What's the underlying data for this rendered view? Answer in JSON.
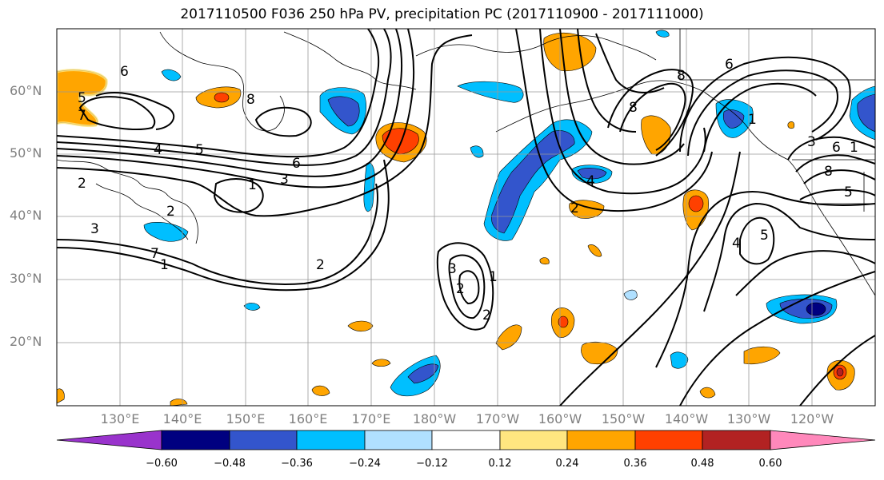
{
  "title": "2017110500 F036 250 hPa PV, precipitation PC (2017110900 - 2017111000)",
  "latitude_labels": [
    "60°N",
    "50°N",
    "40°N",
    "30°N",
    "20°N"
  ],
  "longitude_labels": [
    "130°E",
    "140°E",
    "150°E",
    "160°E",
    "170°E",
    "180°W",
    "170°W",
    "160°W",
    "150°W",
    "140°W",
    "130°W",
    "120°W"
  ],
  "colorbar": {
    "tick_labels": [
      "−0.60",
      "−0.48",
      "−0.36",
      "−0.24",
      "−0.12",
      "0.12",
      "0.24",
      "0.36",
      "0.48",
      "0.60"
    ],
    "colors": [
      "#9933cc",
      "#000080",
      "#3355cc",
      "#00bfff",
      "#b0e0ff",
      "#ffffff",
      "#ffe680",
      "#ffa500",
      "#ff4000",
      "#b22222",
      "#ff88bb"
    ]
  },
  "contour_labels": [
    "6",
    "5",
    "7",
    "8",
    "4",
    "5",
    "6",
    "3",
    "1",
    "2",
    "2",
    "3",
    "7",
    "1",
    "2",
    "2",
    "3",
    "1",
    "2",
    "8",
    "4",
    "8",
    "6",
    "1",
    "3",
    "6",
    "1",
    "8",
    "5",
    "4",
    "5",
    "2"
  ]
}
